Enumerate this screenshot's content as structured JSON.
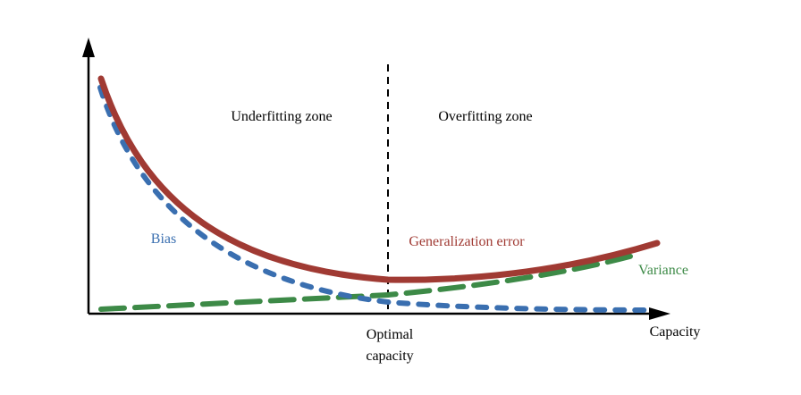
{
  "labels": {
    "underfitting": "Underfitting zone",
    "overfitting": "Overfitting zone",
    "bias": "Bias",
    "generalization_error": "Generalization error",
    "variance": "Variance",
    "optimal_capacity": "Optimal capacity",
    "x_axis": "Capacity"
  }
}
